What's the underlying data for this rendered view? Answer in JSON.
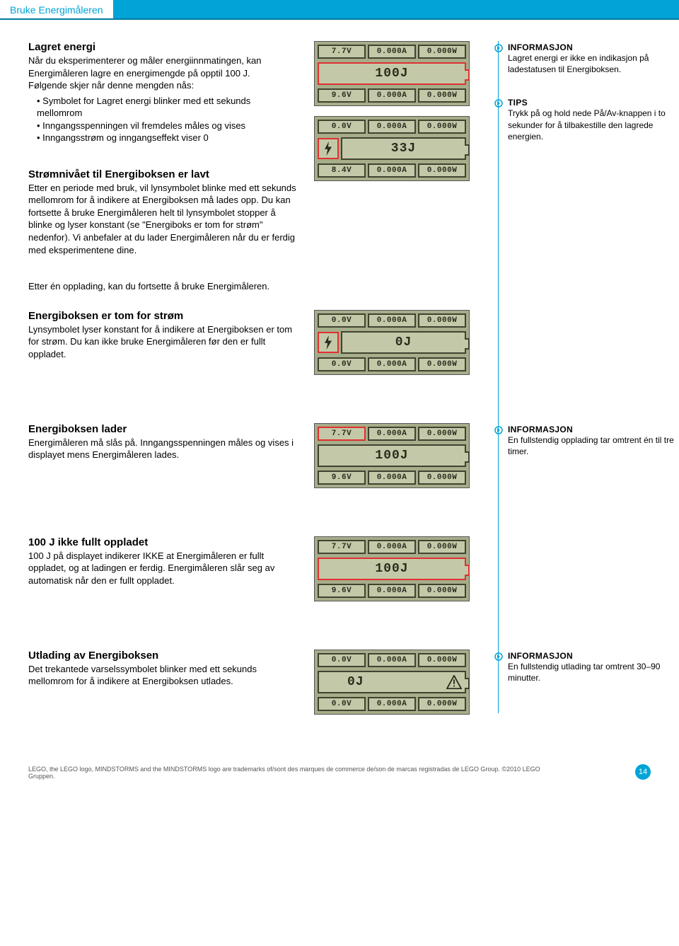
{
  "header": {
    "title": "Bruke Energimåleren"
  },
  "colors": {
    "accent": "#00a4d6",
    "lcd_bg": "#a6ad8a",
    "lcd_cell": "#c3c9a8",
    "lcd_fg": "#2a2c1d",
    "highlight": "#e03030"
  },
  "sections": {
    "stored": {
      "heading": "Lagret energi",
      "intro": "Når du eksperimenterer og måler energiinnmatingen, kan Energimåleren lagre en energimengde på opptil 100 J.",
      "list_intro": "Følgende skjer når denne mengden nås:",
      "items": [
        "Symbolet for Lagret energi blinker med ett sekunds mellomrom",
        "Inngangsspenningen vil fremdeles måles og vises",
        "Inngangsstrøm og inngangseffekt viser 0"
      ]
    },
    "low": {
      "heading": "Strømnivået til Energiboksen er lavt",
      "body": "Etter en periode med bruk, vil lynsymbolet blinke med ett sekunds mellomrom for å indikere at Energiboksen må lades opp. Du kan fortsette å bruke Energimåleren helt til lynsymbolet stopper å blinke og lyser konstant (se \"Energiboks er tom for strøm\" nedenfor). Vi anbefaler at du lader Energimåleren når du er ferdig med eksperimentene dine.",
      "after": "Etter én opplading, kan du fortsette å bruke Energimåleren."
    },
    "empty": {
      "heading": "Energiboksen er tom for strøm",
      "body": "Lynsymbolet lyser konstant for å indikere at Energiboksen er tom for strøm. Du kan ikke bruke Energimåleren før den er fullt oppladet."
    },
    "charging": {
      "heading": "Energiboksen lader",
      "body": "Energimåleren må slås på. Inngangsspenningen måles og vises i displayet mens Energimåleren lades."
    },
    "notfull": {
      "heading": "100 J ikke fullt oppladet",
      "body": "100 J på displayet indikerer IKKE at Energimåleren er fullt oppladet, og at ladingen er ferdig. Energimåleren slår seg av automatisk når den er fullt oppladet."
    },
    "discharge": {
      "heading": "Utlading av Energiboksen",
      "body": "Det trekantede varselssymbolet blinker med ett sekunds mellomrom for å indikere at Energiboksen utlades."
    }
  },
  "lcds": {
    "stored": {
      "top": [
        "7.7V",
        "0.000A",
        "0.000W"
      ],
      "mid": "100J",
      "mid_red": true,
      "bolt": false,
      "bolt_red": false,
      "warn": false,
      "bot": [
        "9.6V",
        "0.000A",
        "0.000W"
      ]
    },
    "low": {
      "top": [
        "0.0V",
        "0.000A",
        "0.000W"
      ],
      "mid": "33J",
      "mid_red": false,
      "bolt": true,
      "bolt_red": true,
      "warn": false,
      "bot": [
        "8.4V",
        "0.000A",
        "0.000W"
      ]
    },
    "empty": {
      "top": [
        "0.0V",
        "0.000A",
        "0.000W"
      ],
      "mid": "0J",
      "mid_red": false,
      "bolt": true,
      "bolt_red": true,
      "warn": false,
      "bot": [
        "0.0V",
        "0.000A",
        "0.000W"
      ]
    },
    "charging": {
      "top": [
        "7.7V",
        "0.000A",
        "0.000W"
      ],
      "mid": "100J",
      "mid_red": false,
      "bolt": false,
      "bolt_red": false,
      "warn": false,
      "bot": [
        "9.6V",
        "0.000A",
        "0.000W"
      ],
      "top0_red": true
    },
    "notfull": {
      "top": [
        "7.7V",
        "0.000A",
        "0.000W"
      ],
      "mid": "100J",
      "mid_red": true,
      "bolt": false,
      "bolt_red": false,
      "warn": false,
      "bot": [
        "9.6V",
        "0.000A",
        "0.000W"
      ]
    },
    "discharge": {
      "top": [
        "0.0V",
        "0.000A",
        "0.000W"
      ],
      "mid": "0J",
      "mid_red": false,
      "bolt": false,
      "bolt_red": false,
      "warn": true,
      "bot": [
        "0.0V",
        "0.000A",
        "0.000W"
      ]
    }
  },
  "notes": {
    "n1": {
      "title": "INFORMASJON",
      "body": "Lagret energi er ikke en indikasjon på ladestatusen til Energiboksen."
    },
    "n2": {
      "title": "TIPS",
      "body": "Trykk på og hold nede På/Av-knappen i to sekunder for å tilbakestille den lagrede energien."
    },
    "n3": {
      "title": "INFORMASJON",
      "body": "En fullstendig opplading tar omtrent én til tre timer."
    },
    "n4": {
      "title": "INFORMASJON",
      "body": "En fullstendig utlading tar omtrent 30–90 minutter."
    }
  },
  "footer": {
    "legal": "LEGO, the LEGO logo, MINDSTORMS and the MINDSTORMS logo are trademarks of/sont des marques de commerce de/son de marcas registradas de LEGO Group. ©2010 LEGO Gruppen.",
    "page": "14"
  }
}
